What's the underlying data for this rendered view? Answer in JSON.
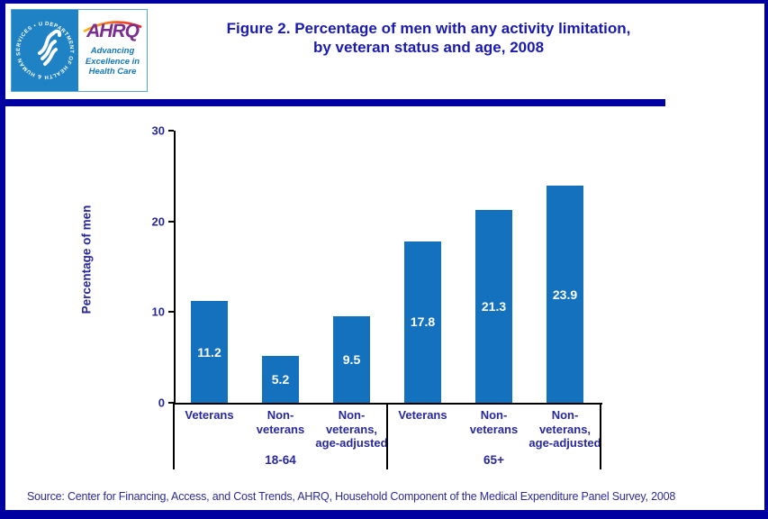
{
  "header": {
    "logo": {
      "seal_text": "DEPARTMENT OF HEALTH & HUMAN SERVICES • USA",
      "org": "AHRQ",
      "tagline": "Advancing Excellence in Health Care"
    },
    "title_line1": "Figure 2. Percentage of men with any activity limitation,",
    "title_line2": "by veteran status and age, 2008"
  },
  "chart_data": {
    "type": "bar",
    "title": "Figure 2. Percentage of men with any activity limitation, by veteran status and age, 2008",
    "ylabel": "Percentage of men",
    "ylim": [
      0,
      30
    ],
    "yticks": [
      0,
      10,
      20,
      30
    ],
    "grid": false,
    "legend": "none",
    "groups": [
      {
        "label": "18-64",
        "categories": [
          "Veterans",
          "Non-\nveterans",
          "Non-\nveterans,\nage-adjusted"
        ],
        "values": [
          11.2,
          5.2,
          9.5
        ]
      },
      {
        "label": "65+",
        "categories": [
          "Veterans",
          "Non-\nveterans",
          "Non-\nveterans,\nage-adjusted"
        ],
        "values": [
          17.8,
          21.3,
          23.9
        ]
      }
    ],
    "value_labels": [
      "11.2",
      "5.2",
      "9.5",
      "17.8",
      "21.3",
      "23.9"
    ],
    "bar_color": "#1371be",
    "value_label_color": "#ffffff",
    "axis_text_color": "#28289e"
  },
  "footer": {
    "source": "Source: Center for Financing, Access, and Cost Trends, AHRQ, Household Component of the Medical Expenditure Panel Survey, 2008"
  },
  "colors": {
    "page_border": "#0000a0",
    "title_text": "#1a1ab0",
    "seal_background": "#1e82c4",
    "ahrq_purple": "#7b2d90",
    "tagline_blue": "#1577be"
  }
}
